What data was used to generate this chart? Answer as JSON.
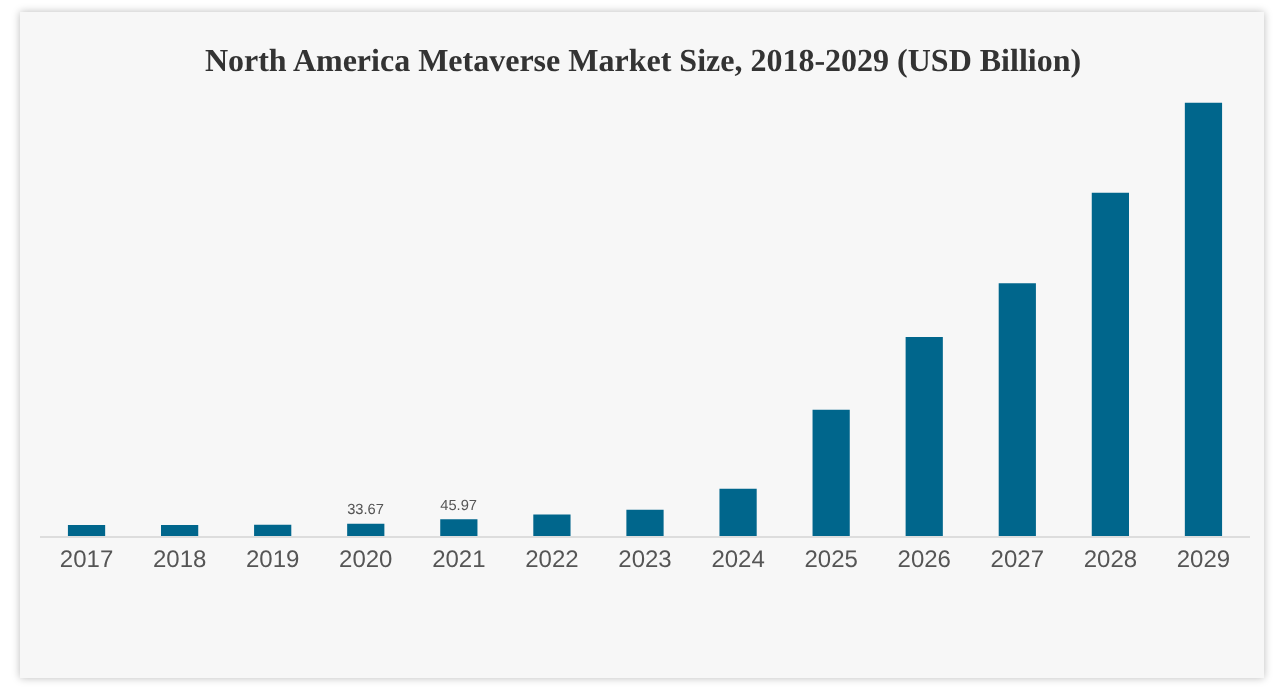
{
  "chart_data": {
    "type": "bar",
    "title": "North America Metaverse Market Size, 2018-2029 (USD Billion)",
    "categories": [
      "2017",
      "2018",
      "2019",
      "2020",
      "2021",
      "2022",
      "2023",
      "2024",
      "2025",
      "2026",
      "2027",
      "2028",
      "2029"
    ],
    "values": [
      30,
      30,
      31,
      33.67,
      45.97,
      59,
      72,
      130,
      347,
      547,
      694,
      943,
      1190
    ],
    "value_labels": [
      null,
      null,
      null,
      "33.67",
      "45.97",
      null,
      null,
      null,
      null,
      null,
      null,
      null,
      null
    ],
    "color": "#00668c",
    "tick_labels": "x"
  }
}
